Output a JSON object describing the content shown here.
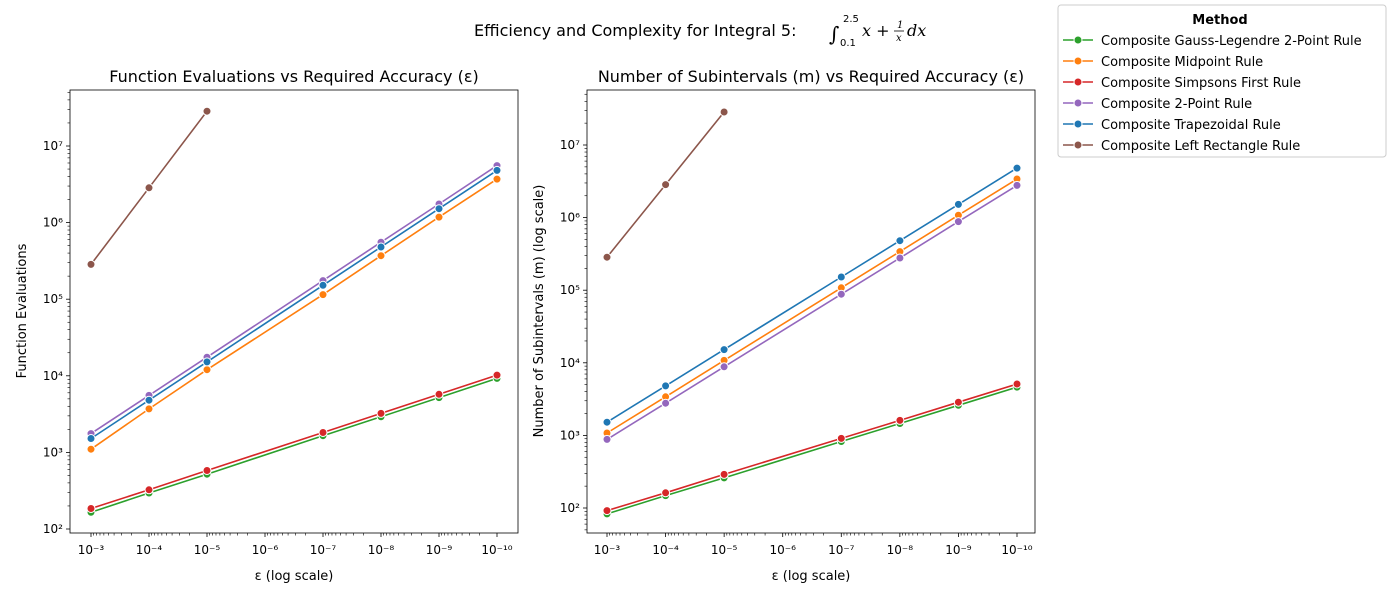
{
  "figure": {
    "suptitle_text": "Efficiency and Complexity for Integral 5:",
    "integral": {
      "symbol": "∫",
      "upper": "2.5",
      "lower": "0.1",
      "integrand_x": "x + ",
      "frac_num": "1",
      "frac_den": "x",
      "dx": "dx"
    }
  },
  "legend": {
    "title": "Method",
    "position": "upper-right outside plot area"
  },
  "series_styles": [
    {
      "name": "Composite Gauss-Legendre 2-Point Rule",
      "color": "#2ca02c"
    },
    {
      "name": "Composite Midpoint Rule",
      "color": "#ff7f0e"
    },
    {
      "name": "Composite Simpsons First Rule",
      "color": "#d62728"
    },
    {
      "name": "Composite 2-Point Rule",
      "color": "#9467bd"
    },
    {
      "name": "Composite Trapezoidal Rule",
      "color": "#1f77b4"
    },
    {
      "name": "Composite Left Rectangle Rule",
      "color": "#8c564b"
    }
  ],
  "chart_data": [
    {
      "type": "line",
      "title": "Function Evaluations vs Required Accuracy (ε)",
      "xlabel": "ε (log scale)",
      "ylabel": "Function Evaluations",
      "xscale": "log (inverted)",
      "yscale": "log",
      "grid": false,
      "x_tick_labels": [
        "10⁻³",
        "10⁻⁴",
        "10⁻⁵",
        "10⁻⁶",
        "10⁻⁷",
        "10⁻⁸",
        "10⁻⁹",
        "10⁻¹⁰"
      ],
      "y_tick_labels": [
        "10²",
        "10³",
        "10⁴",
        "10⁵",
        "10⁶",
        "10⁷"
      ],
      "series": [
        {
          "name": "Composite Gauss-Legendre 2-Point Rule",
          "x": [
            0.001,
            0.0001,
            1e-05,
            1e-07,
            1e-08,
            1e-09,
            1e-10
          ],
          "y": [
            165,
            295,
            520,
            1650,
            2920,
            5200,
            9250
          ]
        },
        {
          "name": "Composite Midpoint Rule",
          "x": [
            0.001,
            0.0001,
            1e-05,
            1e-07,
            1e-08,
            1e-09,
            1e-10
          ],
          "y": [
            1100,
            3700,
            12000,
            115000,
            370000,
            1180000,
            3700000
          ]
        },
        {
          "name": "Composite Simpsons First Rule",
          "x": [
            0.001,
            0.0001,
            1e-05,
            1e-07,
            1e-08,
            1e-09,
            1e-10
          ],
          "y": [
            185,
            325,
            580,
            1820,
            3230,
            5730,
            10200
          ]
        },
        {
          "name": "Composite 2-Point Rule",
          "x": [
            0.001,
            0.0001,
            1e-05,
            1e-07,
            1e-08,
            1e-09,
            1e-10
          ],
          "y": [
            1760,
            5550,
            17500,
            175000,
            555000,
            1750000,
            5550000
          ]
        },
        {
          "name": "Composite Trapezoidal Rule",
          "x": [
            0.001,
            0.0001,
            1e-05,
            1e-07,
            1e-08,
            1e-09,
            1e-10
          ],
          "y": [
            1520,
            4800,
            15200,
            152000,
            480000,
            1520000,
            4800000
          ]
        },
        {
          "name": "Composite Left Rectangle Rule",
          "x": [
            0.001,
            0.0001,
            1e-05
          ],
          "y": [
            285000,
            2850000,
            28500000
          ]
        }
      ]
    },
    {
      "type": "line",
      "title": "Number of Subintervals (m) vs Required Accuracy (ε)",
      "xlabel": "ε (log scale)",
      "ylabel": "Number of Subintervals (m) (log scale)",
      "xscale": "log (inverted)",
      "yscale": "log",
      "grid": false,
      "x_tick_labels": [
        "10⁻³",
        "10⁻⁴",
        "10⁻⁵",
        "10⁻⁶",
        "10⁻⁷",
        "10⁻⁸",
        "10⁻⁹",
        "10⁻¹⁰"
      ],
      "y_tick_labels": [
        "10²",
        "10³",
        "10⁴",
        "10⁵",
        "10⁶",
        "10⁷"
      ],
      "series": [
        {
          "name": "Composite Gauss-Legendre 2-Point Rule",
          "x": [
            0.001,
            0.0001,
            1e-05,
            1e-07,
            1e-08,
            1e-09,
            1e-10
          ],
          "y": [
            83,
            148,
            260,
            825,
            1460,
            2600,
            4630
          ]
        },
        {
          "name": "Composite Midpoint Rule",
          "x": [
            0.001,
            0.0001,
            1e-05,
            1e-07,
            1e-08,
            1e-09,
            1e-10
          ],
          "y": [
            1080,
            3400,
            10800,
            108000,
            340000,
            1080000,
            3400000
          ]
        },
        {
          "name": "Composite Simpsons First Rule",
          "x": [
            0.001,
            0.0001,
            1e-05,
            1e-07,
            1e-08,
            1e-09,
            1e-10
          ],
          "y": [
            92,
            162,
            290,
            910,
            1610,
            2870,
            5100
          ]
        },
        {
          "name": "Composite 2-Point Rule",
          "x": [
            0.001,
            0.0001,
            1e-05,
            1e-07,
            1e-08,
            1e-09,
            1e-10
          ],
          "y": [
            880,
            2780,
            8800,
            88000,
            278000,
            880000,
            2780000
          ]
        },
        {
          "name": "Composite Trapezoidal Rule",
          "x": [
            0.001,
            0.0001,
            1e-05,
            1e-07,
            1e-08,
            1e-09,
            1e-10
          ],
          "y": [
            1520,
            4800,
            15200,
            152000,
            480000,
            1520000,
            4800000
          ]
        },
        {
          "name": "Composite Left Rectangle Rule",
          "x": [
            0.001,
            0.0001,
            1e-05
          ],
          "y": [
            285000,
            2850000,
            28500000
          ]
        }
      ]
    }
  ]
}
